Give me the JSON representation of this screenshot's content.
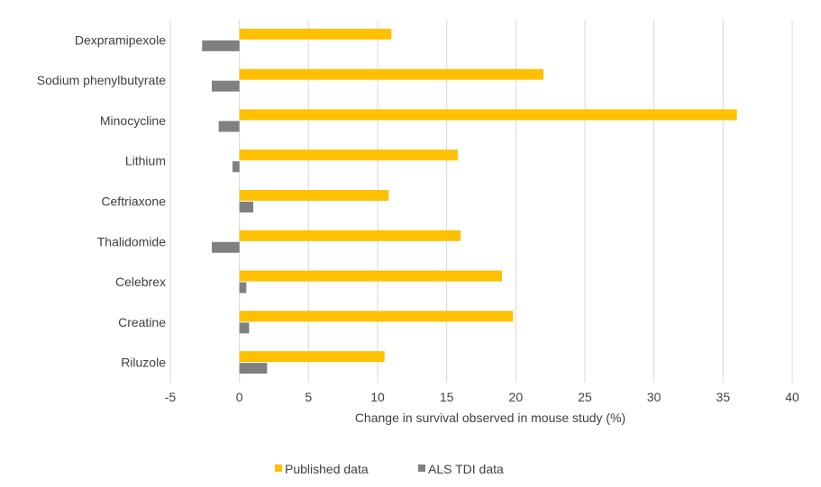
{
  "chart_data": {
    "type": "bar",
    "orientation": "horizontal",
    "title": "",
    "xlabel": "Change in survival observed in mouse study (%)",
    "ylabel": "",
    "categories": [
      "Dexpramipexole",
      "Sodium phenylbutyrate",
      "Minocycline",
      "Lithium",
      "Ceftriaxone",
      "Thalidomide",
      "Celebrex",
      "Creatine",
      "Riluzole"
    ],
    "xlim": [
      -5,
      40
    ],
    "xticks": [
      "-5",
      "0",
      "5",
      "10",
      "15",
      "20",
      "25",
      "30",
      "35",
      "40"
    ],
    "grid": true,
    "legend_position": "bottom",
    "series": [
      {
        "name": "Published data",
        "color": "#ffc000",
        "values": [
          11,
          22,
          36,
          15.8,
          10.8,
          16,
          19,
          19.8,
          10.5
        ]
      },
      {
        "name": "ALS TDI data",
        "color": "#808080",
        "values": [
          -2.7,
          -2,
          -1.5,
          -0.5,
          1,
          -2,
          0.5,
          0.7,
          2
        ]
      }
    ]
  }
}
